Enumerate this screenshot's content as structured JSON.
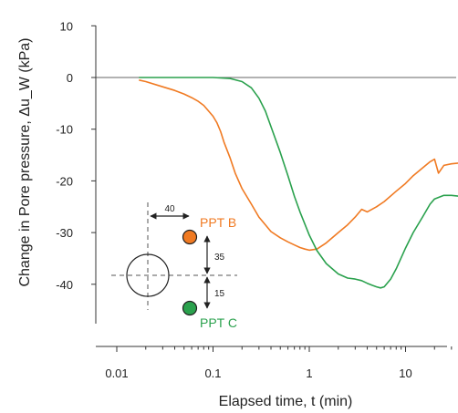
{
  "chart_data": {
    "type": "line",
    "title": "",
    "xlabel": "Elapsed time, t (min)",
    "ylabel": "Change in Pore pressure, Δu_W (kPa)",
    "xscale": "log",
    "xlim": [
      0.01,
      40
    ],
    "ylim": [
      -50,
      10
    ],
    "xticks": [
      0.01,
      0.1,
      1,
      10
    ],
    "xtick_labels": [
      "0.01",
      "0.1",
      "1",
      "10"
    ],
    "yticks": [
      10,
      0,
      -10,
      -20,
      -30,
      -40
    ],
    "ytick_labels": [
      "10",
      "0",
      "-10",
      "-20",
      "-30",
      "-40"
    ],
    "zero_line": true,
    "grid": false,
    "series": [
      {
        "name": "PPT B",
        "color": "#f07a22",
        "x": [
          0.017,
          0.02,
          0.03,
          0.04,
          0.05,
          0.06,
          0.07,
          0.08,
          0.09,
          0.1,
          0.11,
          0.12,
          0.13,
          0.15,
          0.17,
          0.2,
          0.25,
          0.3,
          0.35,
          0.4,
          0.5,
          0.6,
          0.7,
          0.8,
          0.9,
          1.0,
          1.2,
          1.5,
          2.0,
          2.5,
          3.0,
          3.5,
          4.0,
          5.0,
          6.0,
          8.0,
          10,
          12,
          15,
          18,
          20,
          22,
          25,
          30,
          38
        ],
        "y": [
          -0.5,
          -0.8,
          -1.8,
          -2.5,
          -3.2,
          -3.9,
          -4.6,
          -5.4,
          -6.5,
          -7.5,
          -8.8,
          -10.5,
          -12.5,
          -15.5,
          -18.5,
          -21.5,
          -24.5,
          -27,
          -28.5,
          -29.8,
          -31,
          -31.8,
          -32.4,
          -32.9,
          -33.2,
          -33.4,
          -33.2,
          -32,
          -30,
          -28.5,
          -27,
          -25.5,
          -26,
          -25,
          -24,
          -22,
          -20.5,
          -19,
          -17.5,
          -16.3,
          -15.8,
          -18.5,
          -17,
          -16.7,
          -16.5
        ]
      },
      {
        "name": "PPT C",
        "color": "#2aa14d",
        "x": [
          0.017,
          0.05,
          0.1,
          0.15,
          0.2,
          0.25,
          0.3,
          0.35,
          0.4,
          0.5,
          0.6,
          0.7,
          0.8,
          1.0,
          1.2,
          1.5,
          2.0,
          2.5,
          3.0,
          3.5,
          4.0,
          4.5,
          5.0,
          5.5,
          6.0,
          7.0,
          8.0,
          10,
          12,
          15,
          18,
          20,
          25,
          30,
          38
        ],
        "y": [
          0,
          0,
          0,
          -0.2,
          -0.8,
          -2,
          -4,
          -6.5,
          -9.5,
          -14.5,
          -19,
          -23,
          -26,
          -30.5,
          -33.5,
          -36,
          -38,
          -38.8,
          -39,
          -39.3,
          -39.8,
          -40.2,
          -40.5,
          -40.7,
          -40.5,
          -39,
          -37,
          -33,
          -30,
          -27,
          -24.5,
          -23.5,
          -22.8,
          -22.8,
          -23
        ]
      }
    ],
    "inset": {
      "labels": [
        "PPT B",
        "PPT C"
      ],
      "dimensions": [
        "40",
        "35",
        "15"
      ],
      "colors": {
        "ppt_b": "#f07a22",
        "ppt_c": "#2aa14d"
      }
    }
  }
}
